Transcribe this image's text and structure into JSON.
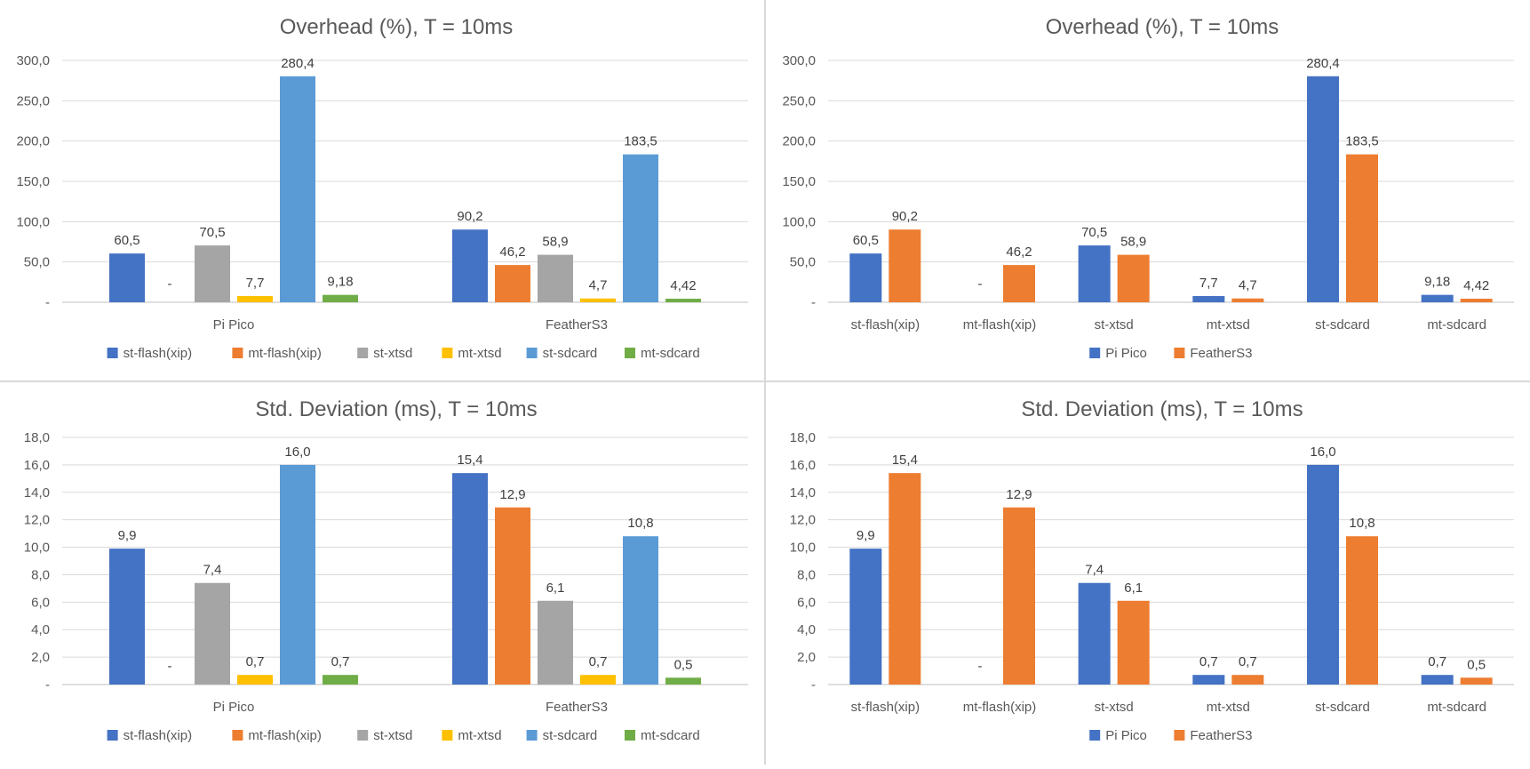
{
  "chart_data": [
    {
      "type": "bar",
      "title": "Overhead (%), T = 10ms",
      "categories": [
        "Pi Pico",
        "FeatherS3"
      ],
      "series": [
        {
          "name": "st-flash(xip)",
          "color": "#4472C4",
          "values": [
            60.5,
            90.2
          ],
          "labels": [
            "60,5",
            "90,2"
          ]
        },
        {
          "name": "mt-flash(xip)",
          "color": "#ED7D31",
          "values": [
            0,
            46.2
          ],
          "labels": [
            "-",
            "46,2"
          ]
        },
        {
          "name": "st-xtsd",
          "color": "#A5A5A5",
          "values": [
            70.5,
            58.9
          ],
          "labels": [
            "70,5",
            "58,9"
          ]
        },
        {
          "name": "mt-xtsd",
          "color": "#FFC000",
          "values": [
            7.7,
            4.7
          ],
          "labels": [
            "7,7",
            "4,7"
          ]
        },
        {
          "name": "st-sdcard",
          "color": "#5B9BD5",
          "values": [
            280.4,
            183.5
          ],
          "labels": [
            "280,4",
            "183,5"
          ]
        },
        {
          "name": "mt-sdcard",
          "color": "#70AD47",
          "values": [
            9.18,
            4.42
          ],
          "labels": [
            "9,18",
            "4,42"
          ]
        }
      ],
      "ylim": [
        0,
        300
      ],
      "yticks": [
        0,
        50,
        100,
        150,
        200,
        250,
        300
      ],
      "ytick_labels": [
        "-",
        "50,0",
        "100,0",
        "150,0",
        "200,0",
        "250,0",
        "300,0"
      ],
      "grid": true,
      "legend": "bottom"
    },
    {
      "type": "bar",
      "title": "Overhead (%), T = 10ms",
      "categories": [
        "st-flash(xip)",
        "mt-flash(xip)",
        "st-xtsd",
        "mt-xtsd",
        "st-sdcard",
        "mt-sdcard"
      ],
      "series": [
        {
          "name": "Pi Pico",
          "color": "#4472C4",
          "values": [
            60.5,
            0,
            70.5,
            7.7,
            280.4,
            9.18
          ],
          "labels": [
            "60,5",
            "-",
            "70,5",
            "7,7",
            "280,4",
            "9,18"
          ]
        },
        {
          "name": "FeatherS3",
          "color": "#ED7D31",
          "values": [
            90.2,
            46.2,
            58.9,
            4.7,
            183.5,
            4.42
          ],
          "labels": [
            "90,2",
            "46,2",
            "58,9",
            "4,7",
            "183,5",
            "4,42"
          ]
        }
      ],
      "ylim": [
        0,
        300
      ],
      "yticks": [
        0,
        50,
        100,
        150,
        200,
        250,
        300
      ],
      "ytick_labels": [
        "-",
        "50,0",
        "100,0",
        "150,0",
        "200,0",
        "250,0",
        "300,0"
      ],
      "grid": true,
      "legend": "bottom"
    },
    {
      "type": "bar",
      "title": "Std. Deviation (ms), T = 10ms",
      "categories": [
        "Pi Pico",
        "FeatherS3"
      ],
      "series": [
        {
          "name": "st-flash(xip)",
          "color": "#4472C4",
          "values": [
            9.9,
            15.4
          ],
          "labels": [
            "9,9",
            "15,4"
          ]
        },
        {
          "name": "mt-flash(xip)",
          "color": "#ED7D31",
          "values": [
            0,
            12.9
          ],
          "labels": [
            "-",
            "12,9"
          ]
        },
        {
          "name": "st-xtsd",
          "color": "#A5A5A5",
          "values": [
            7.4,
            6.1
          ],
          "labels": [
            "7,4",
            "6,1"
          ]
        },
        {
          "name": "mt-xtsd",
          "color": "#FFC000",
          "values": [
            0.7,
            0.7
          ],
          "labels": [
            "0,7",
            "0,7"
          ]
        },
        {
          "name": "st-sdcard",
          "color": "#5B9BD5",
          "values": [
            16.0,
            10.8
          ],
          "labels": [
            "16,0",
            "10,8"
          ]
        },
        {
          "name": "mt-sdcard",
          "color": "#70AD47",
          "values": [
            0.7,
            0.5
          ],
          "labels": [
            "0,7",
            "0,5"
          ]
        }
      ],
      "ylim": [
        0,
        18
      ],
      "yticks": [
        0,
        2,
        4,
        6,
        8,
        10,
        12,
        14,
        16,
        18
      ],
      "ytick_labels": [
        "-",
        "2,0",
        "4,0",
        "6,0",
        "8,0",
        "10,0",
        "12,0",
        "14,0",
        "16,0",
        "18,0"
      ],
      "grid": true,
      "legend": "bottom"
    },
    {
      "type": "bar",
      "title": "Std. Deviation (ms), T = 10ms",
      "categories": [
        "st-flash(xip)",
        "mt-flash(xip)",
        "st-xtsd",
        "mt-xtsd",
        "st-sdcard",
        "mt-sdcard"
      ],
      "series": [
        {
          "name": "Pi Pico",
          "color": "#4472C4",
          "values": [
            9.9,
            0,
            7.4,
            0.7,
            16.0,
            0.7
          ],
          "labels": [
            "9,9",
            "-",
            "7,4",
            "0,7",
            "16,0",
            "0,7"
          ]
        },
        {
          "name": "FeatherS3",
          "color": "#ED7D31",
          "values": [
            15.4,
            12.9,
            6.1,
            0.7,
            10.8,
            0.5
          ],
          "labels": [
            "15,4",
            "12,9",
            "6,1",
            "0,7",
            "10,8",
            "0,5"
          ]
        }
      ],
      "ylim": [
        0,
        18
      ],
      "yticks": [
        0,
        2,
        4,
        6,
        8,
        10,
        12,
        14,
        16,
        18
      ],
      "ytick_labels": [
        "-",
        "2,0",
        "4,0",
        "6,0",
        "8,0",
        "10,0",
        "12,0",
        "14,0",
        "16,0",
        "18,0"
      ],
      "grid": true,
      "legend": "bottom"
    }
  ]
}
